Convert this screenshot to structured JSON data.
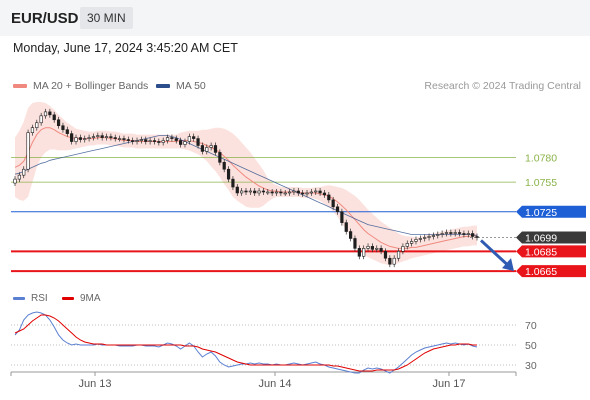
{
  "header": {
    "symbol": "EUR/USD",
    "timeframe": "30 MIN"
  },
  "datetime": "Monday, June 17, 2024 3:45:20 AM CET",
  "legend": {
    "ma20_bb": {
      "label": "MA 20 + Bollinger Bands",
      "color": "#f08a80"
    },
    "ma50": {
      "label": "MA 50",
      "color": "#2c4f8c"
    },
    "credit": "Research © 2024 Trading Central"
  },
  "rsi_legend": {
    "rsi": {
      "label": "RSI",
      "color": "#5b7fd1"
    },
    "ma9": {
      "label": "9MA",
      "color": "#e00000"
    }
  },
  "chart_data": [
    {
      "type": "candlestick",
      "title": "",
      "ylim": [
        1.0656,
        1.0838
      ],
      "x_ticks": [
        "Jun 13",
        "Jun 14",
        "Jun 17"
      ],
      "levels": [
        {
          "value": 1.078,
          "label": "1.0780",
          "color": "#8ab34a",
          "style": "thin"
        },
        {
          "value": 1.0755,
          "label": "1.0755",
          "color": "#8ab34a",
          "style": "thin"
        },
        {
          "value": 1.0725,
          "label": "1.0725",
          "color": "#1f5fd6",
          "style": "badge"
        },
        {
          "value": 1.0699,
          "label": "1.0699",
          "color": "#333333",
          "style": "current"
        },
        {
          "value": 1.0685,
          "label": "1.0685",
          "color": "#e8141a",
          "style": "badge-thick"
        },
        {
          "value": 1.0665,
          "label": "1.0665",
          "color": "#e8141a",
          "style": "badge-thick"
        }
      ],
      "close": [
        1.0758,
        1.0762,
        1.0768,
        1.0805,
        1.081,
        1.0815,
        1.0822,
        1.0826,
        1.0823,
        1.0818,
        1.0812,
        1.0808,
        1.0804,
        1.0796,
        1.08,
        1.0798,
        1.0799,
        1.08,
        1.0801,
        1.0802,
        1.08,
        1.0801,
        1.08,
        1.0799,
        1.0799,
        1.0798,
        1.0797,
        1.0796,
        1.0797,
        1.0798,
        1.0796,
        1.0797,
        1.0796,
        1.0795,
        1.0797,
        1.08,
        1.0799,
        1.0797,
        1.0793,
        1.0796,
        1.0801,
        1.0799,
        1.0792,
        1.0786,
        1.079,
        1.0792,
        1.0785,
        1.0775,
        1.0768,
        1.0758,
        1.075,
        1.0744,
        1.0746,
        1.0745,
        1.0746,
        1.0744,
        1.0746,
        1.0745,
        1.0745,
        1.0744,
        1.0745,
        1.0744,
        1.0744,
        1.0745,
        1.0746,
        1.0744,
        1.0743,
        1.0744,
        1.0745,
        1.0746,
        1.0744,
        1.0742,
        1.0737,
        1.073,
        1.0725,
        1.0714,
        1.0705,
        1.0698,
        1.0688,
        1.068,
        1.0688,
        1.069,
        1.0687,
        1.0688,
        1.0685,
        1.0678,
        1.0672,
        1.0678,
        1.0685,
        1.069,
        1.0693,
        1.0695,
        1.0697,
        1.0698,
        1.0699,
        1.07,
        1.0701,
        1.0702,
        1.0703,
        1.0704,
        1.0703,
        1.0704,
        1.0703,
        1.0702,
        1.0703,
        1.07,
        1.0699
      ],
      "ma20": [
        1.077,
        1.0772,
        1.0776,
        1.0785,
        1.0795,
        1.0803,
        1.0808,
        1.081,
        1.081,
        1.0808,
        1.0805,
        1.0803,
        1.0801,
        1.08,
        1.0799,
        1.0799,
        1.0799,
        1.0799,
        1.0799,
        1.08,
        1.08,
        1.08,
        1.0799,
        1.0799,
        1.0798,
        1.0797,
        1.0797,
        1.0797,
        1.0796,
        1.0796,
        1.0796,
        1.0796,
        1.0796,
        1.0796,
        1.0796,
        1.0796,
        1.0796,
        1.0796,
        1.0797,
        1.0797,
        1.0797,
        1.0796,
        1.0795,
        1.0794,
        1.0792,
        1.079,
        1.0788,
        1.0785,
        1.0781,
        1.0777,
        1.0772,
        1.0768,
        1.0764,
        1.076,
        1.0757,
        1.0754,
        1.0751,
        1.0749,
        1.0747,
        1.0746,
        1.0746,
        1.0745,
        1.0745,
        1.0745,
        1.0745,
        1.0745,
        1.0744,
        1.0744,
        1.0744,
        1.0744,
        1.0743,
        1.0742,
        1.0741,
        1.0738,
        1.0735,
        1.0731,
        1.0727,
        1.0722,
        1.0717,
        1.0712,
        1.0707,
        1.0703,
        1.07,
        1.0697,
        1.0694,
        1.0692,
        1.069,
        1.0689,
        1.0688,
        1.0688,
        1.0688,
        1.0689,
        1.0689,
        1.069,
        1.0691,
        1.0692,
        1.0693,
        1.0694,
        1.0695,
        1.0696,
        1.0697,
        1.0698,
        1.0699,
        1.07,
        1.07,
        1.0701,
        1.0701
      ],
      "bb_width": [
        0.003,
        0.0035,
        0.004,
        0.0045,
        0.004,
        0.0033,
        0.0028,
        0.0025,
        0.0022,
        0.002,
        0.0018,
        0.0016,
        0.0014,
        0.0012,
        0.001,
        0.0009,
        0.0008,
        0.0007,
        0.0007,
        0.0007,
        0.0007,
        0.0007,
        0.0007,
        0.0007,
        0.0007,
        0.0007,
        0.0007,
        0.0007,
        0.0007,
        0.0007,
        0.0007,
        0.0007,
        0.0007,
        0.0007,
        0.0007,
        0.0007,
        0.0007,
        0.0007,
        0.0008,
        0.0009,
        0.001,
        0.0011,
        0.0012,
        0.0014,
        0.0016,
        0.0019,
        0.0022,
        0.0025,
        0.0028,
        0.003,
        0.0032,
        0.0032,
        0.0031,
        0.003,
        0.0028,
        0.0025,
        0.0022,
        0.0018,
        0.0012,
        0.0008,
        0.0006,
        0.0005,
        0.0005,
        0.0005,
        0.0005,
        0.0005,
        0.0005,
        0.0005,
        0.0005,
        0.0006,
        0.0007,
        0.0009,
        0.0011,
        0.0013,
        0.0015,
        0.0018,
        0.002,
        0.0022,
        0.0024,
        0.0025,
        0.0025,
        0.0024,
        0.0023,
        0.0022,
        0.0021,
        0.002,
        0.0019,
        0.0017,
        0.0015,
        0.0013,
        0.0012,
        0.0011,
        0.001,
        0.001,
        0.001,
        0.001,
        0.001,
        0.001,
        0.001,
        0.001,
        0.001,
        0.001,
        0.001,
        0.001,
        0.001,
        0.001,
        0.001
      ],
      "ma50": [
        1.0763,
        1.0764,
        1.0766,
        1.0768,
        1.077,
        1.0772,
        1.0774,
        1.0775,
        1.0777,
        1.0778,
        1.0779,
        1.078,
        1.0781,
        1.0782,
        1.0783,
        1.0784,
        1.0785,
        1.0786,
        1.0787,
        1.0788,
        1.0789,
        1.079,
        1.0791,
        1.0792,
        1.0793,
        1.0794,
        1.0795,
        1.0796,
        1.0797,
        1.0798,
        1.0799,
        1.08,
        1.0801,
        1.0802,
        1.0802,
        1.0802,
        1.0801,
        1.08,
        1.0798,
        1.0796,
        1.0794,
        1.0792,
        1.079,
        1.0788,
        1.0786,
        1.0784,
        1.0782,
        1.078,
        1.0778,
        1.0776,
        1.0774,
        1.0772,
        1.077,
        1.0768,
        1.0766,
        1.0764,
        1.0762,
        1.076,
        1.0758,
        1.0756,
        1.0754,
        1.0752,
        1.075,
        1.0748,
        1.0746,
        1.0744,
        1.0742,
        1.074,
        1.0738,
        1.0736,
        1.0734,
        1.0732,
        1.073,
        1.0728,
        1.0726,
        1.0724,
        1.0722,
        1.072,
        1.0718,
        1.0716,
        1.0714,
        1.0712,
        1.0711,
        1.071,
        1.0709,
        1.0708,
        1.0707,
        1.0706,
        1.0705,
        1.0704,
        1.0703,
        1.0702,
        1.0702,
        1.0702,
        1.0702,
        1.0702,
        1.0702,
        1.0702,
        1.0702,
        1.0702,
        1.0702,
        1.0702,
        1.0702,
        1.0702,
        1.0702,
        1.0702,
        1.0701
      ]
    },
    {
      "type": "line",
      "title": "",
      "ylim": [
        20,
        90
      ],
      "y_ticks": [
        70,
        50,
        30
      ],
      "series": [
        {
          "name": "RSI",
          "color": "#5b7fd1",
          "values": [
            60,
            65,
            75,
            80,
            82,
            83,
            82,
            80,
            75,
            68,
            60,
            55,
            52,
            50,
            51,
            50,
            50,
            50,
            50,
            51,
            50,
            50,
            50,
            50,
            49,
            49,
            49,
            49,
            50,
            50,
            49,
            49,
            49,
            48,
            50,
            52,
            51,
            49,
            46,
            49,
            52,
            49,
            43,
            38,
            41,
            43,
            39,
            33,
            30,
            28,
            29,
            30,
            31,
            31,
            32,
            31,
            32,
            31,
            31,
            30,
            31,
            30,
            30,
            31,
            32,
            31,
            30,
            31,
            32,
            33,
            31,
            30,
            28,
            27,
            26,
            25,
            24,
            23,
            22,
            22,
            25,
            27,
            26,
            27,
            26,
            24,
            22,
            25,
            28,
            32,
            36,
            40,
            43,
            45,
            47,
            48,
            49,
            50,
            51,
            52,
            51,
            52,
            51,
            50,
            51,
            49,
            48
          ]
        },
        {
          "name": "9MA",
          "color": "#e00000",
          "values": [
            62,
            64,
            66,
            70,
            74,
            77,
            80,
            80,
            79,
            77,
            74,
            70,
            66,
            62,
            58,
            55,
            53,
            52,
            51,
            51,
            51,
            50,
            50,
            50,
            50,
            50,
            50,
            50,
            50,
            50,
            50,
            50,
            50,
            50,
            50,
            50,
            50,
            50,
            50,
            49,
            49,
            49,
            48,
            46,
            45,
            44,
            43,
            41,
            39,
            37,
            35,
            33,
            32,
            31,
            30,
            30,
            30,
            30,
            30,
            30,
            30,
            30,
            30,
            30,
            30,
            30,
            30,
            30,
            30,
            30,
            30,
            30,
            30,
            29,
            29,
            28,
            27,
            26,
            25,
            24,
            24,
            24,
            24,
            25,
            25,
            25,
            25,
            25,
            26,
            28,
            30,
            33,
            36,
            39,
            42,
            44,
            46,
            47,
            48,
            49,
            50,
            50,
            51,
            51,
            51,
            50,
            50
          ]
        }
      ]
    }
  ]
}
